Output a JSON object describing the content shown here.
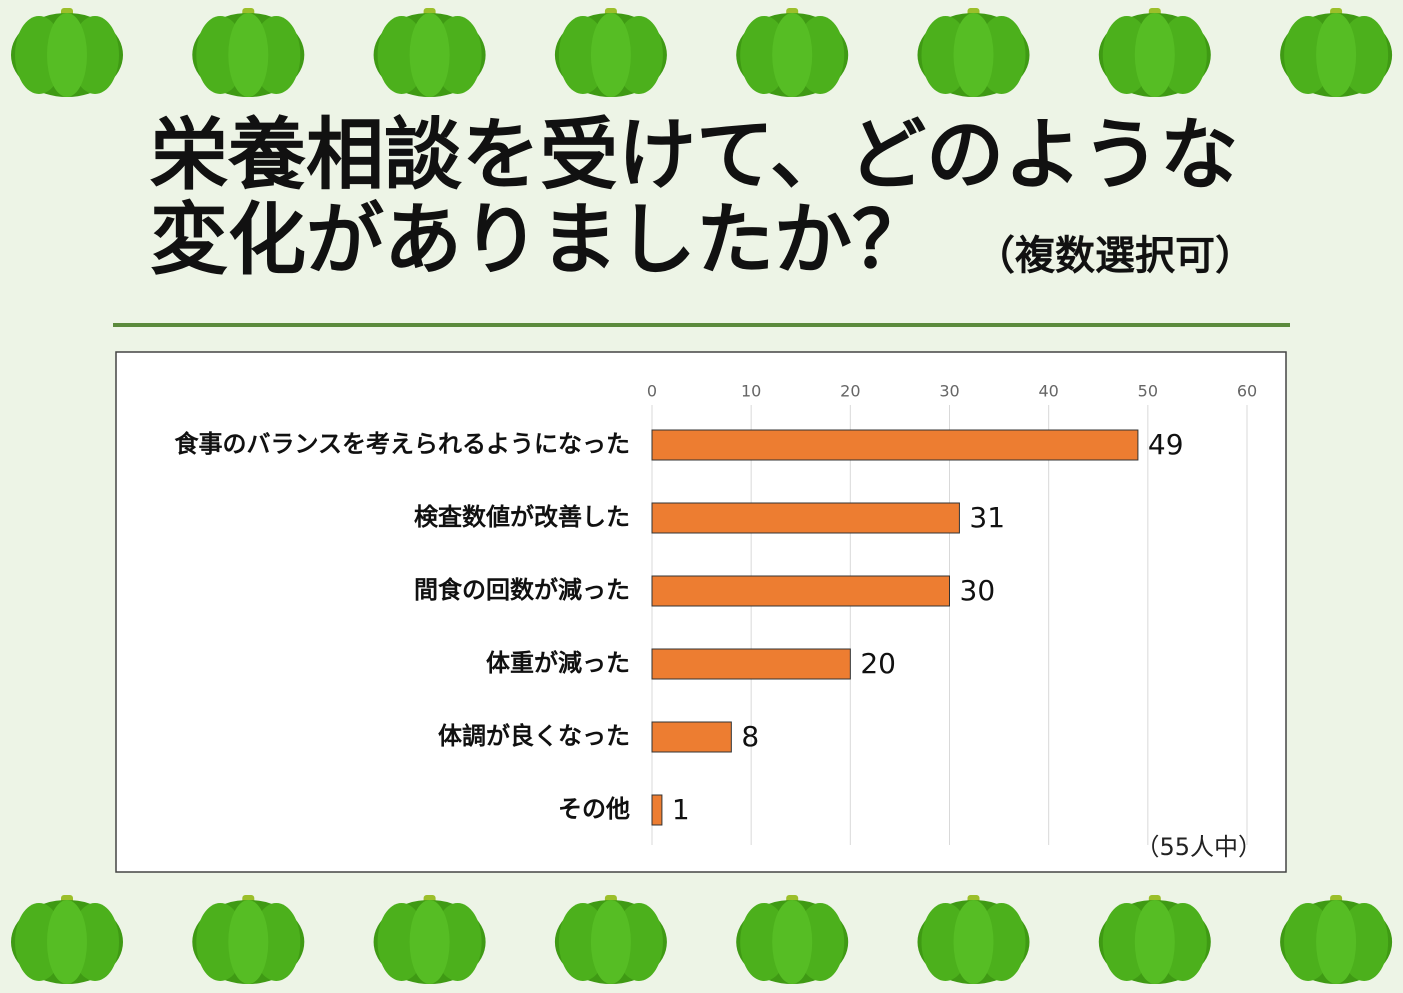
{
  "chart_data": {
    "type": "bar",
    "orientation": "horizontal",
    "title": [
      "栄養相談を受けて、どのような",
      "変化がありましたか？"
    ],
    "subtitle": "（複数選択可）",
    "note": "（55人中）",
    "categories": [
      "食事のバランスを考えられるようになった",
      "検査数値が改善した",
      "間食の回数が減った",
      "体重が減った",
      "体調が良くなった",
      "その他"
    ],
    "values": [
      49,
      31,
      30,
      20,
      8,
      1
    ],
    "color": "#ed7d31",
    "xlim": [
      0,
      60
    ],
    "xticks": [
      0,
      10,
      20,
      30,
      40,
      50,
      60
    ],
    "grid": true
  }
}
